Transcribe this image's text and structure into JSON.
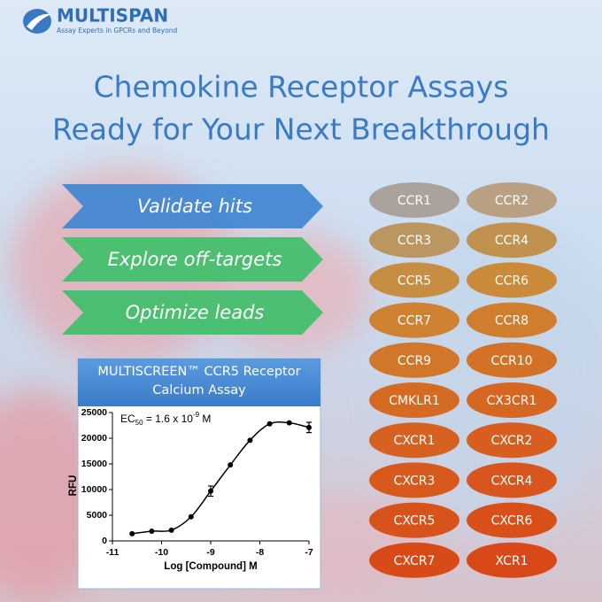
{
  "header": {
    "brand": "MULTISPAN",
    "tagline": "Assay Experts in GPCRs and Beyond"
  },
  "headline": [
    "Chemokine Receptor Assays",
    "Ready for Your Next Breakthrough"
  ],
  "arrows": [
    {
      "label": "Validate hits",
      "color": "#3f86d2"
    },
    {
      "label": "Explore off-targets",
      "color": "#3fbf6a"
    },
    {
      "label": "Optimize leads",
      "color": "#3fbf6a"
    }
  ],
  "receptors": [
    {
      "label": "CCR1",
      "color": "#aaa39d"
    },
    {
      "label": "CCR2",
      "color": "#b9a083"
    },
    {
      "label": "CCR3",
      "color": "#bb9660"
    },
    {
      "label": "CCR4",
      "color": "#c1924f"
    },
    {
      "label": "CCR5",
      "color": "#c78d42"
    },
    {
      "label": "CCR6",
      "color": "#cb893a"
    },
    {
      "label": "CCR7",
      "color": "#ce8232"
    },
    {
      "label": "CCR8",
      "color": "#d07d2d"
    },
    {
      "label": "CCR9",
      "color": "#d27629"
    },
    {
      "label": "CCR10",
      "color": "#d37126"
    },
    {
      "label": "CMKLR1",
      "color": "#d56b23"
    },
    {
      "label": "CX3CR1",
      "color": "#d66722"
    },
    {
      "label": "CXCR1",
      "color": "#d76120"
    },
    {
      "label": "CXCR2",
      "color": "#d85e1f"
    },
    {
      "label": "CXCR3",
      "color": "#d8591d"
    },
    {
      "label": "CXCR4",
      "color": "#d8561d"
    },
    {
      "label": "CXCR5",
      "color": "#d8521b"
    },
    {
      "label": "CXCR6",
      "color": "#d84f1a"
    },
    {
      "label": "CXCR7",
      "color": "#d84b19"
    },
    {
      "label": "XCR1",
      "color": "#d84818"
    }
  ],
  "chart_data": {
    "type": "scatter",
    "title": [
      "MULTISCREEN™ CCR5 Receptor",
      "Calcium Assay"
    ],
    "annotation": {
      "prefix": "EC",
      "sub": "50",
      "mid": " = 1.6 x 10",
      "sup": "-9",
      "suffix": " M"
    },
    "x_label": "Log [Compound] M",
    "y_label": "RFU",
    "x": [
      -10.6,
      -10.2,
      -9.8,
      -9.4,
      -9.0,
      -8.6,
      -8.2,
      -7.8,
      -7.4,
      -7.0
    ],
    "values": [
      1400,
      1900,
      2100,
      4700,
      9700,
      14800,
      19600,
      22800,
      23000,
      22100
    ],
    "errors": [
      null,
      null,
      null,
      null,
      1000,
      null,
      null,
      null,
      null,
      1000
    ],
    "color": "#000000",
    "xlim": [
      -11,
      -7
    ],
    "xticks": [
      -11,
      -10,
      -9,
      -8,
      -7
    ],
    "ylim": [
      0,
      25000
    ],
    "yticks": [
      0,
      5000,
      10000,
      15000,
      20000,
      25000
    ]
  }
}
